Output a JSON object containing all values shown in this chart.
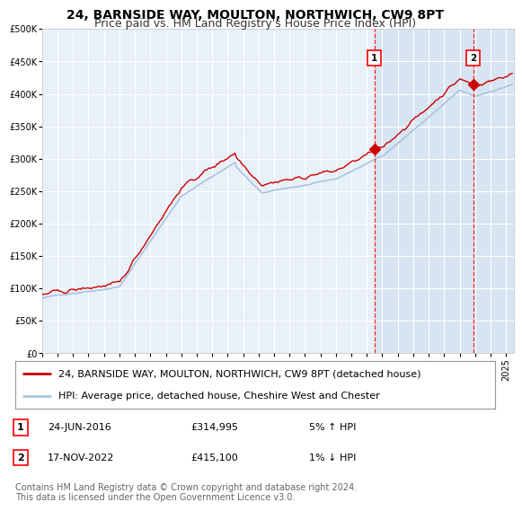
{
  "title": "24, BARNSIDE WAY, MOULTON, NORTHWICH, CW9 8PT",
  "subtitle": "Price paid vs. HM Land Registry's House Price Index (HPI)",
  "ylim": [
    0,
    500000
  ],
  "yticks": [
    0,
    50000,
    100000,
    150000,
    200000,
    250000,
    300000,
    350000,
    400000,
    450000,
    500000
  ],
  "xlim_start": 1995.0,
  "xlim_end": 2025.5,
  "hpi_color": "#a8c4e0",
  "price_color": "#cc0000",
  "background_plot": "#e8f0f8",
  "background_fig": "#ffffff",
  "grid_color": "#ffffff",
  "sale1_date_num": 2016.48,
  "sale1_price": 314995,
  "sale2_date_num": 2022.88,
  "sale2_price": 415100,
  "highlight_start": 2016.48,
  "legend_line1": "24, BARNSIDE WAY, MOULTON, NORTHWICH, CW9 8PT (detached house)",
  "legend_line2": "HPI: Average price, detached house, Cheshire West and Chester",
  "sale1_date_text": "24-JUN-2016",
  "sale1_pct": "5% ↑ HPI",
  "sale2_date_text": "17-NOV-2022",
  "sale2_pct": "1% ↓ HPI",
  "footnote": "Contains HM Land Registry data © Crown copyright and database right 2024.\nThis data is licensed under the Open Government Licence v3.0.",
  "title_fontsize": 10,
  "subtitle_fontsize": 9,
  "tick_fontsize": 7,
  "legend_fontsize": 8,
  "annot_fontsize": 8,
  "footnote_fontsize": 7
}
